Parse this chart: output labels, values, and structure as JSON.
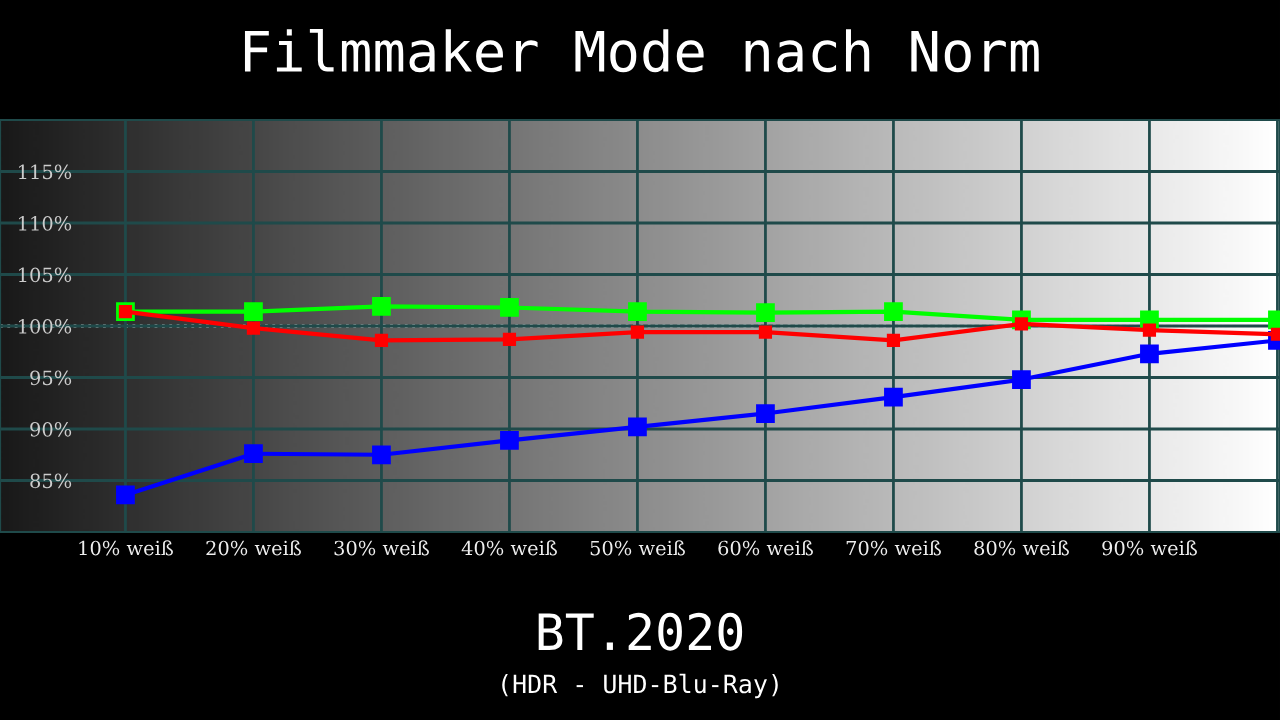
{
  "chart_data": {
    "type": "line",
    "title": "Filmmaker Mode nach Norm",
    "annotations": [
      "BT.2020",
      "(HDR - UHD-Blu-Ray)"
    ],
    "categories": [
      "10% weiß",
      "20% weiß",
      "30% weiß",
      "40% weiß",
      "50% weiß",
      "60% weiß",
      "70% weiß",
      "80% weiß",
      "90% weiß",
      null
    ],
    "series": [
      {
        "color": "#ff0000",
        "values": [
          101.4,
          99.8,
          98.6,
          98.7,
          99.4,
          99.4,
          98.6,
          100.2,
          99.6,
          99.2
        ]
      },
      {
        "color": "#00ff00",
        "values": [
          101.4,
          101.4,
          101.9,
          101.8,
          101.4,
          101.3,
          101.4,
          100.6,
          100.6,
          100.6
        ]
      },
      {
        "color": "#0000ff",
        "values": [
          83.6,
          87.6,
          87.5,
          88.9,
          90.2,
          91.5,
          93.1,
          94.8,
          97.3,
          98.6
        ]
      }
    ],
    "ylim": [
      80,
      120
    ],
    "yticks": [
      {
        "value": 85,
        "label": "85%"
      },
      {
        "value": 90,
        "label": "90%"
      },
      {
        "value": 95,
        "label": "95%"
      },
      {
        "value": 100,
        "label": "100%"
      },
      {
        "value": 105,
        "label": "105%"
      },
      {
        "value": 110,
        "label": "110%"
      },
      {
        "value": 115,
        "label": "115%"
      }
    ],
    "ref_lines": [
      {
        "axis": "y",
        "value": 100,
        "color": "#ffffff",
        "line_style": "dotted"
      }
    ],
    "grid": true,
    "legend": false,
    "marker": "square",
    "line_style": "solid"
  }
}
